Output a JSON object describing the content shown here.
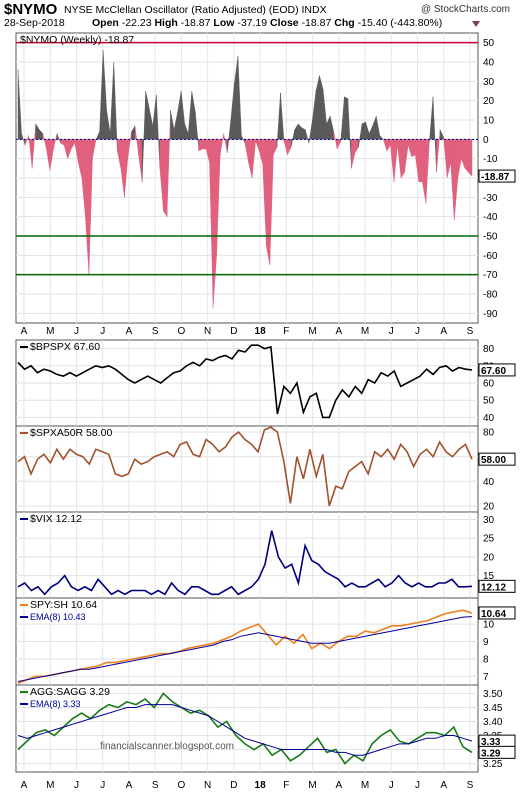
{
  "header": {
    "symbol": "$NYMO",
    "name": "NYSE McClellan Oscillator (Ratio Adjusted) (EOD)  INDX",
    "copyright": "@ StockCharts.com",
    "date": "28-Sep-2018",
    "open_label": "Open",
    "open_value": "-22.23",
    "high_label": "High",
    "high_value": "-18.87",
    "low_label": "Low",
    "low_value": "-37.19",
    "close_label": "Close",
    "close_value": "-18.87",
    "chg_label": "Chg",
    "chg_value": "-15.40 (-443.80%)"
  },
  "watermark": "financialscanner.blogspot.com",
  "x_axis_labels": [
    "A",
    "M",
    "J",
    "J",
    "A",
    "S",
    "O",
    "N",
    "D",
    "18",
    "F",
    "M",
    "A",
    "M",
    "J",
    "J",
    "A",
    "S"
  ],
  "colors": {
    "nymo_positive": "#5a5a5a",
    "nymo_negative": "#e0607e",
    "red_line": "#cc0033",
    "green_line": "#006600",
    "black_series": "#000000",
    "brown_series": "#a0522d",
    "navy_series": "#000080",
    "orange_series": "#f07f20",
    "ema_series": "#000099",
    "green_series": "#1a7a1a"
  },
  "chart_data": [
    {
      "type": "area",
      "title": "$NYMO (Weekly) -18.87",
      "last_value_label": "-18.87",
      "ylim": [
        -95,
        55
      ],
      "y_ticks": [
        50,
        40,
        30,
        20,
        10,
        0,
        -10,
        -20,
        -30,
        -40,
        -50,
        -60,
        -70,
        -80,
        -90
      ],
      "reference_lines": [
        50,
        0,
        -50,
        -70
      ],
      "values": [
        36,
        3,
        -3,
        2,
        -15,
        8,
        5,
        3,
        -5,
        -16,
        -5,
        3,
        -2,
        -3,
        -10,
        -5,
        -2,
        -12,
        -20,
        -40,
        -70,
        -10,
        0,
        4,
        46,
        15,
        3,
        40,
        -6,
        -15,
        -30,
        -9,
        4,
        7,
        -8,
        -22,
        25,
        16,
        7,
        23,
        -15,
        -37,
        -40,
        15,
        5,
        14,
        25,
        8,
        3,
        25,
        14,
        -6,
        -5,
        -5,
        -12,
        -87,
        -60,
        -8,
        3,
        -7,
        10,
        29,
        43,
        2,
        -2,
        -12,
        -20,
        -1,
        -6,
        -13,
        -55,
        -65,
        -8,
        -4,
        24,
        -1,
        -8,
        -4,
        5,
        8,
        6,
        5,
        -2,
        10,
        25,
        33,
        26,
        8,
        12,
        4,
        -5,
        -1,
        22,
        21,
        -15,
        -7,
        -4,
        8,
        9,
        3,
        7,
        12,
        2,
        0,
        -6,
        -3,
        -22,
        -3,
        -20,
        -17,
        -3,
        -9,
        -8,
        -22,
        -22,
        -33,
        -1,
        22,
        -17,
        5,
        1,
        -20,
        -12,
        -42,
        -20,
        -10,
        -15,
        -17,
        -19
      ]
    },
    {
      "type": "line",
      "title": "$BPSPX 67.60",
      "last_value_label": "67.60",
      "ylim": [
        35,
        85
      ],
      "y_ticks": [
        80,
        70,
        60,
        50,
        40
      ],
      "values": [
        72,
        68,
        70,
        66,
        68,
        67,
        65,
        64,
        66,
        64,
        66,
        68,
        70,
        69,
        70,
        68,
        65,
        62,
        60,
        62,
        64,
        62,
        60,
        63,
        66,
        67,
        70,
        72,
        70,
        74,
        73,
        75,
        76,
        74,
        79,
        78,
        82,
        82,
        80,
        81,
        42,
        58,
        54,
        60,
        43,
        52,
        54,
        40,
        40,
        50,
        56,
        52,
        58,
        54,
        62,
        60,
        66,
        64,
        67,
        58,
        60,
        62,
        64,
        68,
        65,
        69,
        70,
        67,
        69,
        68,
        67.6
      ]
    },
    {
      "type": "line",
      "title": "$SPXA50R 58.00",
      "last_value_label": "58.00",
      "ylim": [
        15,
        85
      ],
      "y_ticks": [
        80,
        60,
        40,
        20
      ],
      "values": [
        56,
        60,
        46,
        58,
        62,
        55,
        66,
        58,
        66,
        62,
        60,
        54,
        66,
        64,
        62,
        46,
        44,
        46,
        58,
        54,
        56,
        60,
        62,
        64,
        60,
        70,
        72,
        62,
        60,
        74,
        70,
        64,
        68,
        76,
        80,
        74,
        70,
        64,
        82,
        84,
        80,
        56,
        22,
        60,
        42,
        66,
        44,
        62,
        20,
        36,
        34,
        48,
        52,
        56,
        46,
        64,
        60,
        66,
        58,
        70,
        64,
        52,
        62,
        66,
        60,
        72,
        64,
        60,
        66,
        70,
        58
      ]
    },
    {
      "type": "line",
      "title": "$VIX 12.12",
      "last_value_label": "12.12",
      "ylim": [
        9,
        32
      ],
      "y_ticks": [
        30,
        25,
        20,
        15
      ],
      "values": [
        12,
        13,
        11,
        12,
        10,
        12,
        13,
        15,
        12,
        11,
        12,
        11,
        14,
        12,
        10,
        11,
        10,
        11,
        11,
        11,
        10,
        11,
        10,
        13,
        11,
        10,
        12,
        12,
        11,
        10,
        10,
        11,
        12,
        10,
        11,
        12,
        14,
        18,
        27,
        20,
        17,
        18,
        13,
        23,
        19,
        18,
        16,
        15,
        14,
        12,
        13,
        12,
        12,
        13,
        14,
        12,
        13,
        15,
        13,
        12,
        13,
        12,
        12,
        13,
        13,
        14,
        12,
        12,
        12.12
      ]
    },
    {
      "type": "line",
      "title": "SPY:SH",
      "ylim": [
        6.5,
        11.5
      ],
      "y_ticks": [
        10,
        9,
        8,
        7
      ],
      "series": [
        {
          "name": "SPY:SH 10.64",
          "last_value_label": "10.64",
          "values": [
            6.6,
            6.8,
            7.0,
            7.0,
            7.1,
            7.2,
            7.3,
            7.4,
            7.5,
            7.6,
            7.8,
            7.8,
            7.9,
            8.0,
            8.1,
            8.2,
            8.3,
            8.3,
            8.4,
            8.6,
            8.7,
            8.8,
            8.9,
            9.1,
            9.3,
            9.6,
            9.8,
            10.0,
            9.4,
            8.8,
            9.3,
            8.9,
            9.4,
            8.6,
            8.9,
            8.6,
            9.0,
            9.3,
            9.3,
            9.6,
            9.5,
            9.7,
            9.9,
            9.9,
            10.0,
            10.1,
            10.2,
            10.4,
            10.6,
            10.7,
            10.8,
            10.64
          ]
        },
        {
          "name": "EMA(8) 10.43",
          "last_value_label": "",
          "values": [
            6.7,
            6.8,
            6.9,
            7.0,
            7.1,
            7.2,
            7.3,
            7.4,
            7.4,
            7.5,
            7.6,
            7.7,
            7.8,
            7.9,
            8.0,
            8.1,
            8.2,
            8.3,
            8.4,
            8.5,
            8.6,
            8.7,
            8.8,
            9.0,
            9.1,
            9.3,
            9.4,
            9.5,
            9.4,
            9.3,
            9.2,
            9.1,
            9.0,
            8.9,
            8.9,
            8.9,
            9.0,
            9.1,
            9.2,
            9.3,
            9.4,
            9.5,
            9.6,
            9.7,
            9.8,
            9.9,
            10.0,
            10.1,
            10.2,
            10.3,
            10.4,
            10.43
          ]
        }
      ]
    },
    {
      "type": "line",
      "title": "AGG:SAGG",
      "ylim": [
        3.22,
        3.53
      ],
      "y_ticks": [
        3.5,
        3.45,
        3.4,
        3.35,
        3.3,
        3.25
      ],
      "series": [
        {
          "name": "AGG:SAGG 3.29",
          "last_value_label": "3.29",
          "values": [
            3.3,
            3.33,
            3.36,
            3.37,
            3.35,
            3.38,
            3.41,
            3.43,
            3.41,
            3.44,
            3.46,
            3.45,
            3.47,
            3.46,
            3.48,
            3.45,
            3.5,
            3.47,
            3.45,
            3.43,
            3.44,
            3.42,
            3.38,
            3.4,
            3.35,
            3.32,
            3.3,
            3.32,
            3.28,
            3.3,
            3.26,
            3.28,
            3.31,
            3.34,
            3.29,
            3.3,
            3.25,
            3.28,
            3.26,
            3.32,
            3.35,
            3.37,
            3.33,
            3.32,
            3.34,
            3.36,
            3.36,
            3.35,
            3.38,
            3.31,
            3.29
          ]
        },
        {
          "name": "EMA(8) 3.33",
          "last_value_label": "3.33",
          "values": [
            3.35,
            3.34,
            3.35,
            3.36,
            3.37,
            3.38,
            3.39,
            3.4,
            3.41,
            3.42,
            3.43,
            3.44,
            3.45,
            3.45,
            3.46,
            3.46,
            3.46,
            3.46,
            3.45,
            3.44,
            3.43,
            3.42,
            3.4,
            3.38,
            3.36,
            3.34,
            3.33,
            3.32,
            3.31,
            3.3,
            3.3,
            3.3,
            3.3,
            3.3,
            3.3,
            3.29,
            3.29,
            3.28,
            3.28,
            3.29,
            3.3,
            3.31,
            3.32,
            3.32,
            3.33,
            3.34,
            3.34,
            3.35,
            3.35,
            3.34,
            3.33
          ]
        }
      ]
    }
  ]
}
